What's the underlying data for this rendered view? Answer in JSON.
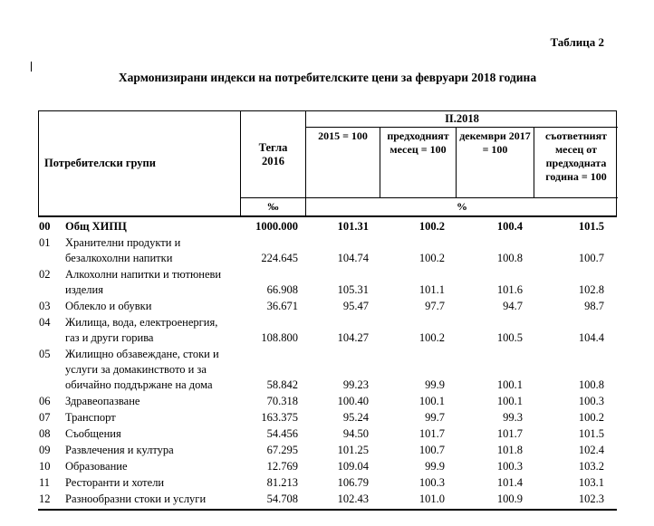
{
  "page": {
    "table_label": "Таблица 2",
    "title": "Хармонизирани индекси на потребителските цени за февруари 2018 година"
  },
  "colors": {
    "text": "#000000",
    "border": "#000000",
    "background": "#ffffff"
  },
  "table": {
    "header": {
      "groups_label": "Потребителски групи",
      "weights_label": "Тегла 2016",
      "period_label": "II.2018",
      "columns": [
        "2015 = 100",
        "предходният месец = 100",
        "декември 2017 = 100",
        "съответният месец от предходната година = 100"
      ],
      "weights_unit": "‰",
      "percent_unit": "%"
    },
    "rows": [
      {
        "code": "00",
        "label": "Общ ХИПЦ",
        "weight": "1000.000",
        "values": [
          "101.31",
          "100.2",
          "100.4",
          "101.5"
        ],
        "bold": true
      },
      {
        "code": "01",
        "label": "Хранителни продукти и безалкохолни напитки",
        "weight": "224.645",
        "values": [
          "104.74",
          "100.2",
          "100.8",
          "100.7"
        ]
      },
      {
        "code": "02",
        "label": "Алкохолни напитки и тютюневи изделия",
        "weight": "66.908",
        "values": [
          "105.31",
          "101.1",
          "101.6",
          "102.8"
        ]
      },
      {
        "code": "03",
        "label": "Облекло и обувки",
        "weight": "36.671",
        "values": [
          "95.47",
          "97.7",
          "94.7",
          "98.7"
        ]
      },
      {
        "code": "04",
        "label": "Жилища, вода, електроенергия, газ и други горива",
        "weight": "108.800",
        "values": [
          "104.27",
          "100.2",
          "100.5",
          "104.4"
        ]
      },
      {
        "code": "05",
        "label": "Жилищно обзавеждане, стоки и услуги за домакинството и за обичайно поддържане на дома",
        "weight": "58.842",
        "values": [
          "99.23",
          "99.9",
          "100.1",
          "100.8"
        ]
      },
      {
        "code": "06",
        "label": "Здравеопазване",
        "weight": "70.318",
        "values": [
          "100.40",
          "100.1",
          "100.1",
          "100.3"
        ]
      },
      {
        "code": "07",
        "label": "Транспорт",
        "weight": "163.375",
        "values": [
          "95.24",
          "99.7",
          "99.3",
          "100.2"
        ]
      },
      {
        "code": "08",
        "label": "Съобщения",
        "weight": "54.456",
        "values": [
          "94.50",
          "101.7",
          "101.7",
          "101.5"
        ]
      },
      {
        "code": "09",
        "label": "Развлечения и култура",
        "weight": "67.295",
        "values": [
          "101.25",
          "100.7",
          "101.8",
          "102.4"
        ]
      },
      {
        "code": "10",
        "label": "Образование",
        "weight": "12.769",
        "values": [
          "109.04",
          "99.9",
          "100.3",
          "103.2"
        ]
      },
      {
        "code": "11",
        "label": "Ресторанти и хотели",
        "weight": "81.213",
        "values": [
          "106.79",
          "100.3",
          "101.4",
          "103.1"
        ]
      },
      {
        "code": "12",
        "label": "Разнообразни стоки и услуги",
        "weight": "54.708",
        "values": [
          "102.43",
          "101.0",
          "100.9",
          "102.3"
        ]
      }
    ]
  }
}
